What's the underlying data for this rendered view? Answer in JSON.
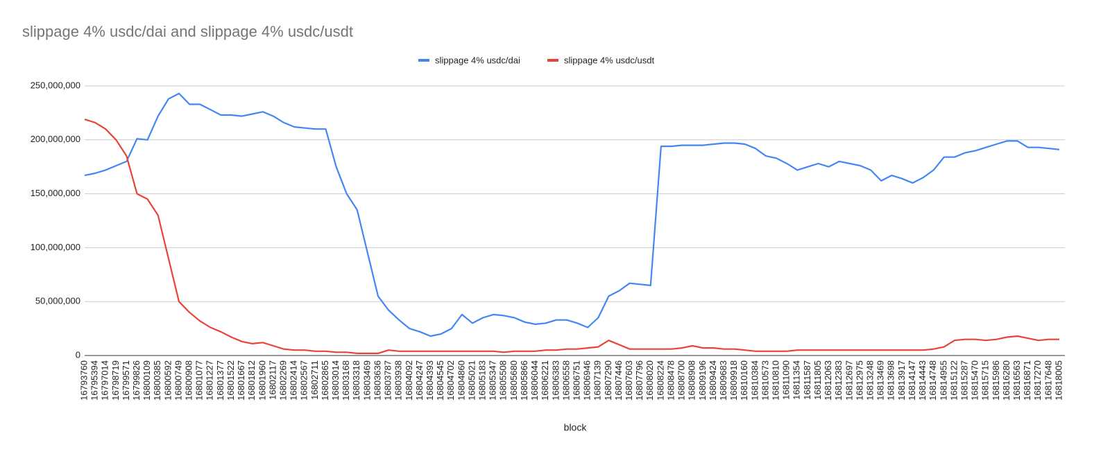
{
  "chart_data": {
    "type": "line",
    "title": "slippage 4% usdc/dai and slippage 4% usdc/usdt",
    "x_label": "block",
    "categories": [
      "16793760",
      "16795394",
      "16797014",
      "16798719",
      "16799571",
      "16799826",
      "16800109",
      "16800385",
      "16800592",
      "16800749",
      "16800908",
      "16801077",
      "16801227",
      "16801377",
      "16801522",
      "16801667",
      "16801812",
      "16801960",
      "16802117",
      "16802269",
      "16802414",
      "16802567",
      "16802711",
      "16802865",
      "16803014",
      "16803168",
      "16803318",
      "16803469",
      "16803636",
      "16803787",
      "16803938",
      "16804092",
      "16804247",
      "16804393",
      "16804545",
      "16804702",
      "16804860",
      "16805021",
      "16805183",
      "16805347",
      "16805508",
      "16805680",
      "16805866",
      "16806044",
      "16806221",
      "16806383",
      "16806558",
      "16806751",
      "16806946",
      "16807139",
      "16807290",
      "16807446",
      "16807603",
      "16807796",
      "16808020",
      "16808224",
      "16808478",
      "16808700",
      "16808908",
      "16809196",
      "16809424",
      "16809683",
      "16809918",
      "16810160",
      "16810384",
      "16810573",
      "16810810",
      "16811090",
      "16811354",
      "16811587",
      "16811805",
      "16812063",
      "16812383",
      "16812697",
      "16812975",
      "16813248",
      "16813469",
      "16813698",
      "16813917",
      "16814147",
      "16814443",
      "16814748",
      "16814955",
      "16815122",
      "16815287",
      "16815470",
      "16815715",
      "16815986",
      "16816280",
      "16816563",
      "16816871",
      "16817270",
      "16817648",
      "16818005"
    ],
    "series": [
      {
        "name": "slippage 4% usdc/dai",
        "color": "#4285f4",
        "values": [
          167000000,
          169000000,
          172000000,
          176000000,
          180000000,
          201000000,
          200000000,
          222000000,
          238000000,
          243000000,
          233000000,
          233000000,
          228000000,
          223000000,
          223000000,
          222000000,
          224000000,
          226000000,
          222000000,
          216000000,
          212000000,
          211000000,
          210000000,
          210000000,
          175000000,
          150000000,
          135000000,
          95000000,
          55000000,
          42000000,
          33000000,
          25000000,
          22000000,
          18000000,
          20000000,
          25000000,
          38000000,
          30000000,
          35000000,
          38000000,
          37000000,
          35000000,
          31000000,
          29000000,
          30000000,
          33000000,
          33000000,
          30000000,
          26000000,
          35000000,
          55000000,
          60000000,
          67000000,
          66000000,
          65000000,
          194000000,
          194000000,
          195000000,
          195000000,
          195000000,
          196000000,
          197000000,
          197000000,
          196000000,
          192000000,
          185000000,
          183000000,
          178000000,
          172000000,
          175000000,
          178000000,
          175000000,
          180000000,
          178000000,
          176000000,
          172000000,
          162000000,
          167000000,
          164000000,
          160000000,
          165000000,
          172000000,
          184000000,
          184000000,
          188000000,
          190000000,
          193000000,
          196000000,
          199000000,
          199000000,
          193000000,
          193000000,
          192000000,
          191000000
        ]
      },
      {
        "name": "slippage 4% usdc/usdt",
        "color": "#ea4335",
        "values": [
          219000000,
          216000000,
          210000000,
          200000000,
          185000000,
          150000000,
          145000000,
          130000000,
          90000000,
          50000000,
          40000000,
          32000000,
          26000000,
          22000000,
          17000000,
          13000000,
          11000000,
          12000000,
          9000000,
          6000000,
          5000000,
          5000000,
          4000000,
          4000000,
          3000000,
          3000000,
          2000000,
          2000000,
          2000000,
          5000000,
          4000000,
          4000000,
          4000000,
          4000000,
          4000000,
          4000000,
          4000000,
          4000000,
          4000000,
          4000000,
          3000000,
          4000000,
          4000000,
          4000000,
          5000000,
          5000000,
          6000000,
          6000000,
          7000000,
          8000000,
          14000000,
          10000000,
          6000000,
          6000000,
          6000000,
          6000000,
          6000000,
          7000000,
          9000000,
          7000000,
          7000000,
          6000000,
          6000000,
          5000000,
          4000000,
          4000000,
          4000000,
          4000000,
          5000000,
          5000000,
          5000000,
          5000000,
          5000000,
          5000000,
          5000000,
          5000000,
          5000000,
          5000000,
          5000000,
          5000000,
          5000000,
          6000000,
          8000000,
          14000000,
          15000000,
          15000000,
          14000000,
          15000000,
          17000000,
          18000000,
          16000000,
          14000000,
          15000000,
          15000000
        ]
      }
    ],
    "ylim": [
      0,
      250000000
    ],
    "yticks": [
      0,
      {
        "value": 50000000,
        "label": "50,000,000"
      },
      {
        "value": 100000000,
        "label": "100,000,000"
      },
      {
        "value": 150000000,
        "label": "150,000,000"
      },
      {
        "value": 200000000,
        "label": "200,000,000"
      },
      {
        "value": 250000000,
        "label": "250,000,000"
      }
    ],
    "grid": true,
    "legend": "top"
  }
}
